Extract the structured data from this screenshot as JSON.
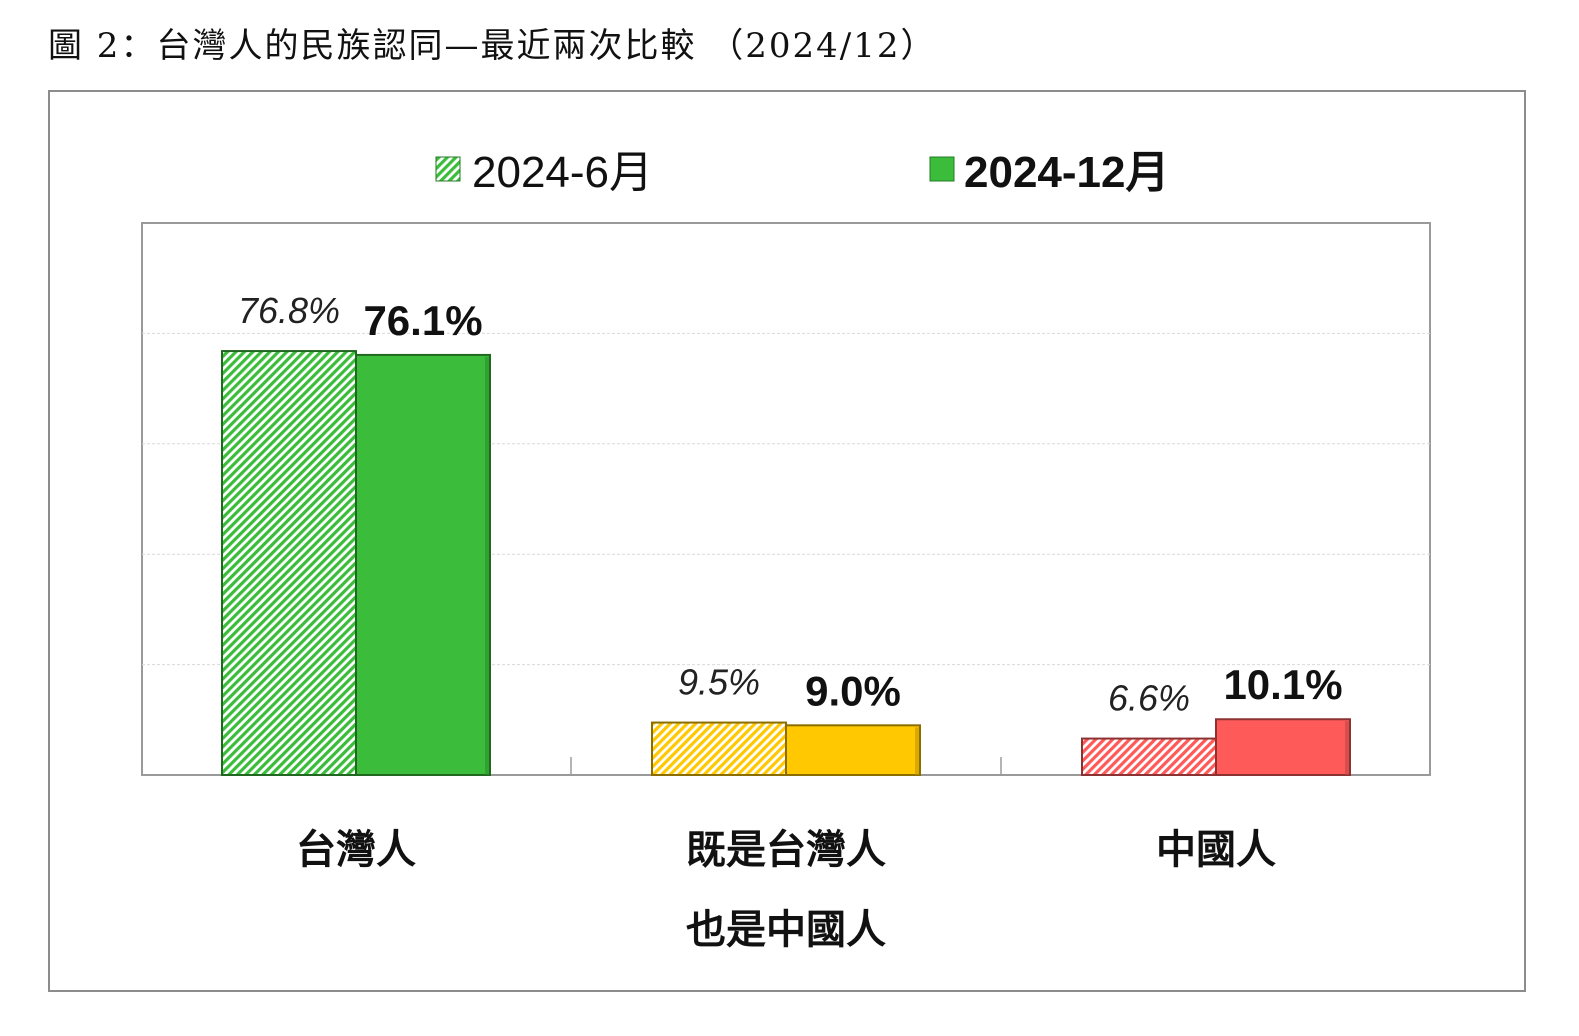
{
  "figure_title": "圖 2：台灣人的民族認同—最近兩次比較 （2024/12）",
  "chart_data": {
    "type": "bar",
    "title": "圖 2：台灣人的民族認同—最近兩次比較 （2024/12）",
    "categories": [
      [
        "台灣人"
      ],
      [
        "既是台灣人",
        "也是中國人"
      ],
      [
        "中國人"
      ]
    ],
    "series": [
      {
        "name": "2024-6月",
        "values": [
          76.8,
          9.5,
          6.6
        ],
        "labels": [
          "76.8%",
          "9.5%",
          "6.6%"
        ],
        "style": "hatched",
        "label_style": "italic"
      },
      {
        "name": "2024-12月",
        "values": [
          76.1,
          9.0,
          10.1
        ],
        "labels": [
          "76.1%",
          "9.0%",
          "10.1%"
        ],
        "style": "solid",
        "label_style": "bold"
      }
    ],
    "category_colors": [
      "#3bbd3b",
      "#ffc800",
      "#ff5a5a"
    ],
    "ylim": [
      0,
      100
    ],
    "grid": true,
    "legend_position": "top-center",
    "xlabel": "",
    "ylabel": ""
  }
}
